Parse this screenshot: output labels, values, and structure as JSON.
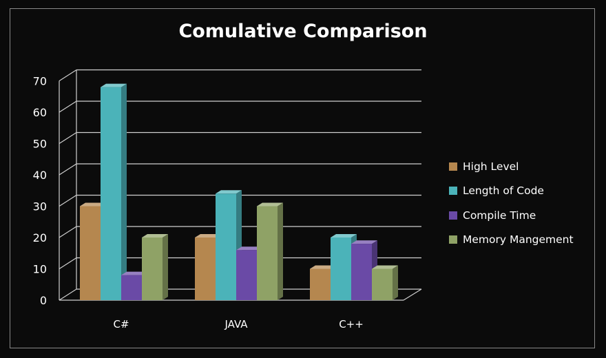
{
  "chart_data": {
    "type": "bar",
    "title": "Comulative Comparison",
    "categories": [
      "C#",
      "JAVA",
      "C++"
    ],
    "series": [
      {
        "name": "High Level",
        "values": [
          30,
          20,
          10
        ],
        "color": "#b5874f"
      },
      {
        "name": "Length of Code",
        "values": [
          68,
          34,
          20
        ],
        "color": "#4bb3b9"
      },
      {
        "name": "Compile Time",
        "values": [
          8,
          16,
          18
        ],
        "color": "#6a4aa6"
      },
      {
        "name": "Memory Mangement",
        "values": [
          20,
          30,
          10
        ],
        "color": "#8fa266"
      }
    ],
    "ylim": [
      0,
      70
    ],
    "yticks": [
      0,
      10,
      20,
      30,
      40,
      50,
      60,
      70
    ],
    "grid": true,
    "legend_position": "right",
    "style": "3d-clustered-column"
  }
}
